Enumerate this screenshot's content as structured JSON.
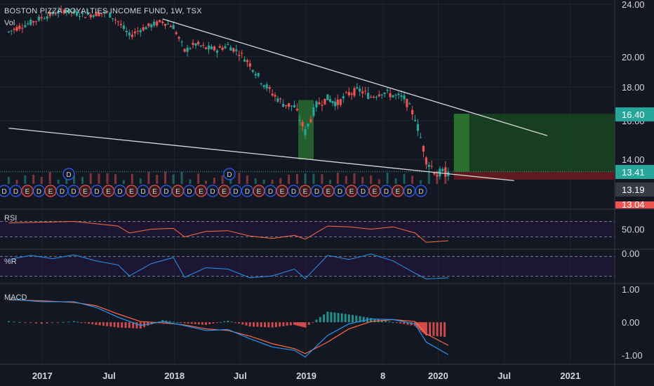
{
  "header": {
    "title": "BOSTON PIZZA ROYALTIES INCOME FUND, 1W, TSX",
    "volume_label": "Vol"
  },
  "colors": {
    "background": "#131722",
    "up": "#26a69a",
    "down": "#ef5350",
    "grid": "#1f2430",
    "axis_text": "#d1d4dc",
    "trendline": "#d9d9d9",
    "rsi_line": "#ff6d3f",
    "wr_line": "#2196f3",
    "macd_line": "#2196f3",
    "signal_line": "#ff6d3f",
    "target_zone": "#1b5e20",
    "stop_zone": "#7f1d1d",
    "event_circle": "#2962ff"
  },
  "chart_data": [
    {
      "type": "candlestick",
      "title": "BOSTON PIZZA ROYALTIES INCOME FUND, 1W, TSX",
      "y_ticks": [
        "24.00",
        "20.00",
        "18.00",
        "16.00",
        "14.00"
      ],
      "ylim": [
        12.0,
        24.0
      ],
      "x_ticks": [
        "2017",
        "Jul",
        "2018",
        "Jul",
        "2019",
        "8",
        "2020",
        "Jul",
        "2021"
      ],
      "price_badges": [
        {
          "label": "16.40",
          "value": 16.4,
          "color": "#26a69a"
        },
        {
          "label": "13.41",
          "value": 13.41,
          "color": "#26a69a"
        },
        {
          "label": "13.19",
          "value": 13.19,
          "color": "#363a45"
        },
        {
          "label": "13.04",
          "value": 13.04,
          "color": "#ef5350"
        }
      ],
      "close_series": [
        {
          "t": "2016-09",
          "v": 21.8
        },
        {
          "t": "2016-10",
          "v": 22.2
        },
        {
          "t": "2016-11",
          "v": 22.5
        },
        {
          "t": "2016-12",
          "v": 22.9
        },
        {
          "t": "2017-01",
          "v": 23.2
        },
        {
          "t": "2017-02",
          "v": 23.5
        },
        {
          "t": "2017-03",
          "v": 23.3
        },
        {
          "t": "2017-04",
          "v": 23.1
        },
        {
          "t": "2017-05",
          "v": 23.2
        },
        {
          "t": "2017-06",
          "v": 23.3
        },
        {
          "t": "2017-07",
          "v": 22.6
        },
        {
          "t": "2017-08",
          "v": 21.5
        },
        {
          "t": "2017-09",
          "v": 22.0
        },
        {
          "t": "2017-10",
          "v": 22.3
        },
        {
          "t": "2017-11",
          "v": 22.6
        },
        {
          "t": "2017-12",
          "v": 22.2
        },
        {
          "t": "2018-01",
          "v": 20.4
        },
        {
          "t": "2018-02",
          "v": 20.9
        },
        {
          "t": "2018-03",
          "v": 20.6
        },
        {
          "t": "2018-04",
          "v": 20.5
        },
        {
          "t": "2018-05",
          "v": 20.8
        },
        {
          "t": "2018-06",
          "v": 20.3
        },
        {
          "t": "2018-07",
          "v": 19.5
        },
        {
          "t": "2018-08",
          "v": 18.4
        },
        {
          "t": "2018-09",
          "v": 17.6
        },
        {
          "t": "2018-10",
          "v": 17.0
        },
        {
          "t": "2018-11",
          "v": 16.8
        },
        {
          "t": "2018-12",
          "v": 15.4
        },
        {
          "t": "2019-01",
          "v": 16.9
        },
        {
          "t": "2019-02",
          "v": 17.3
        },
        {
          "t": "2019-03",
          "v": 17.0
        },
        {
          "t": "2019-04",
          "v": 17.6
        },
        {
          "t": "2019-05",
          "v": 17.8
        },
        {
          "t": "2019-06",
          "v": 17.4
        },
        {
          "t": "2019-07",
          "v": 17.7
        },
        {
          "t": "2019-08",
          "v": 17.5
        },
        {
          "t": "2019-09",
          "v": 17.3
        },
        {
          "t": "2019-10",
          "v": 16.2
        },
        {
          "t": "2019-11",
          "v": 14.0
        },
        {
          "t": "2019-12",
          "v": 13.3
        },
        {
          "t": "2020-01",
          "v": 13.41
        }
      ],
      "trendlines": [
        {
          "name": "upper",
          "points": [
            {
              "t": "2017-11",
              "v": 22.8
            },
            {
              "t": "2020-10",
              "v": 15.2
            }
          ]
        },
        {
          "name": "lower",
          "points": [
            {
              "t": "2016-09",
              "v": 15.6
            },
            {
              "t": "2020-07",
              "v": 13.0
            }
          ]
        }
      ],
      "position": {
        "entry": 13.41,
        "target": 16.4,
        "stop": 13.04,
        "start": "2020-01",
        "end": "2021-05"
      },
      "event_markers": [
        "D",
        "D",
        "E",
        "D",
        "E",
        "D",
        "D",
        "E",
        "D",
        "E",
        "D",
        "E",
        "D",
        "E",
        "D",
        "E",
        "D",
        "E",
        "D",
        "E",
        "D",
        "D",
        "E",
        "D",
        "E",
        "D",
        "E",
        "D",
        "E",
        "D",
        "E",
        "D",
        "E",
        "D",
        "E",
        "D",
        "D"
      ],
      "event_markers_upper": [
        "D",
        "D"
      ]
    },
    {
      "type": "line",
      "title": "RSI",
      "y_ticks": [
        "50.00"
      ],
      "ylim": [
        0,
        100
      ],
      "levels": [
        70,
        30
      ],
      "series": [
        {
          "t": "2016-09",
          "v": 66
        },
        {
          "t": "2016-12",
          "v": 68
        },
        {
          "t": "2017-03",
          "v": 70
        },
        {
          "t": "2017-05",
          "v": 64
        },
        {
          "t": "2017-07",
          "v": 58
        },
        {
          "t": "2017-08",
          "v": 40
        },
        {
          "t": "2017-10",
          "v": 50
        },
        {
          "t": "2017-12",
          "v": 52
        },
        {
          "t": "2018-01",
          "v": 30
        },
        {
          "t": "2018-03",
          "v": 44
        },
        {
          "t": "2018-05",
          "v": 46
        },
        {
          "t": "2018-07",
          "v": 32
        },
        {
          "t": "2018-09",
          "v": 26
        },
        {
          "t": "2018-11",
          "v": 34
        },
        {
          "t": "2018-12",
          "v": 24
        },
        {
          "t": "2019-02",
          "v": 58
        },
        {
          "t": "2019-04",
          "v": 56
        },
        {
          "t": "2019-06",
          "v": 50
        },
        {
          "t": "2019-08",
          "v": 56
        },
        {
          "t": "2019-10",
          "v": 40
        },
        {
          "t": "2019-11",
          "v": 16
        },
        {
          "t": "2020-01",
          "v": 20
        }
      ]
    },
    {
      "type": "line",
      "title": "%R",
      "y_ticks": [
        "0.00"
      ],
      "ylim": [
        -100,
        0
      ],
      "levels": [
        -20,
        -80
      ],
      "series": [
        {
          "t": "2016-09",
          "v": -25
        },
        {
          "t": "2016-11",
          "v": -10
        },
        {
          "t": "2017-01",
          "v": -22
        },
        {
          "t": "2017-03",
          "v": -8
        },
        {
          "t": "2017-05",
          "v": -30
        },
        {
          "t": "2017-07",
          "v": -45
        },
        {
          "t": "2017-08",
          "v": -85
        },
        {
          "t": "2017-10",
          "v": -40
        },
        {
          "t": "2017-12",
          "v": -18
        },
        {
          "t": "2018-01",
          "v": -90
        },
        {
          "t": "2018-03",
          "v": -55
        },
        {
          "t": "2018-05",
          "v": -60
        },
        {
          "t": "2018-07",
          "v": -92
        },
        {
          "t": "2018-09",
          "v": -85
        },
        {
          "t": "2018-11",
          "v": -60
        },
        {
          "t": "2018-12",
          "v": -95
        },
        {
          "t": "2019-02",
          "v": -10
        },
        {
          "t": "2019-04",
          "v": -25
        },
        {
          "t": "2019-06",
          "v": -5
        },
        {
          "t": "2019-08",
          "v": -30
        },
        {
          "t": "2019-10",
          "v": -75
        },
        {
          "t": "2019-11",
          "v": -96
        },
        {
          "t": "2020-01",
          "v": -92
        }
      ]
    },
    {
      "type": "line",
      "title": "MACD",
      "y_ticks": [
        "1.00",
        "0.00",
        "-1.00"
      ],
      "ylim": [
        -1.25,
        1.15
      ],
      "macd": [
        {
          "t": "2016-09",
          "v": 0.7
        },
        {
          "t": "2016-12",
          "v": 0.62
        },
        {
          "t": "2017-03",
          "v": 0.62
        },
        {
          "t": "2017-05",
          "v": 0.45
        },
        {
          "t": "2017-07",
          "v": 0.15
        },
        {
          "t": "2017-09",
          "v": -0.1
        },
        {
          "t": "2017-11",
          "v": 0.02
        },
        {
          "t": "2018-01",
          "v": -0.1
        },
        {
          "t": "2018-03",
          "v": -0.25
        },
        {
          "t": "2018-05",
          "v": -0.22
        },
        {
          "t": "2018-07",
          "v": -0.5
        },
        {
          "t": "2018-09",
          "v": -0.75
        },
        {
          "t": "2018-11",
          "v": -0.85
        },
        {
          "t": "2018-12",
          "v": -1.05
        },
        {
          "t": "2019-02",
          "v": -0.4
        },
        {
          "t": "2019-04",
          "v": -0.05
        },
        {
          "t": "2019-06",
          "v": 0.1
        },
        {
          "t": "2019-08",
          "v": 0.08
        },
        {
          "t": "2019-10",
          "v": -0.05
        },
        {
          "t": "2019-11",
          "v": -0.6
        },
        {
          "t": "2020-01",
          "v": -0.98
        }
      ],
      "signal": [
        {
          "t": "2016-09",
          "v": 0.68
        },
        {
          "t": "2016-12",
          "v": 0.65
        },
        {
          "t": "2017-03",
          "v": 0.6
        },
        {
          "t": "2017-05",
          "v": 0.5
        },
        {
          "t": "2017-07",
          "v": 0.25
        },
        {
          "t": "2017-09",
          "v": 0.02
        },
        {
          "t": "2017-11",
          "v": -0.02
        },
        {
          "t": "2018-01",
          "v": -0.08
        },
        {
          "t": "2018-03",
          "v": -0.2
        },
        {
          "t": "2018-05",
          "v": -0.25
        },
        {
          "t": "2018-07",
          "v": -0.42
        },
        {
          "t": "2018-09",
          "v": -0.65
        },
        {
          "t": "2018-11",
          "v": -0.8
        },
        {
          "t": "2018-12",
          "v": -0.95
        },
        {
          "t": "2019-02",
          "v": -0.6
        },
        {
          "t": "2019-04",
          "v": -0.2
        },
        {
          "t": "2019-06",
          "v": 0.02
        },
        {
          "t": "2019-08",
          "v": 0.08
        },
        {
          "t": "2019-10",
          "v": 0.02
        },
        {
          "t": "2019-11",
          "v": -0.35
        },
        {
          "t": "2020-01",
          "v": -0.7
        }
      ]
    }
  ]
}
